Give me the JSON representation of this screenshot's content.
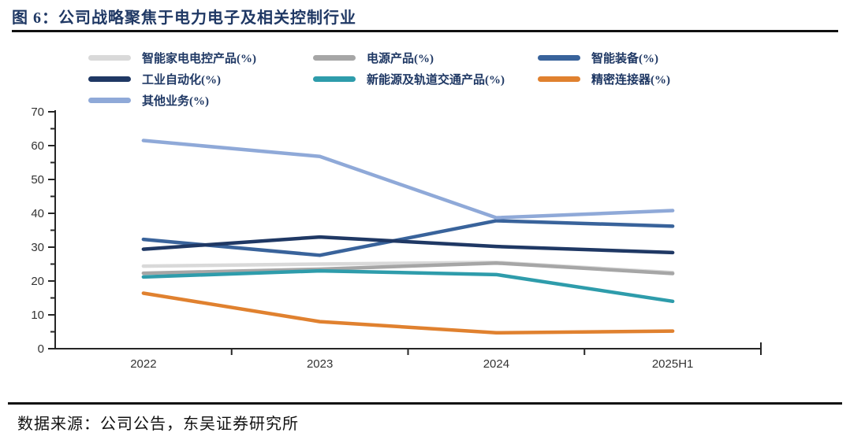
{
  "header": {
    "title": "图 6：公司战略聚焦于电力电子及相关控制行业"
  },
  "footer": {
    "source": "数据来源：公司公告，东吴证券研究所"
  },
  "chart_data": {
    "type": "line",
    "categories": [
      "2022",
      "2023",
      "2024",
      "2025H1"
    ],
    "series": [
      {
        "name": "智能家电电控产品(%)",
        "color": "#d9d9d9",
        "values": [
          24.4,
          25.0,
          25.5,
          22.5
        ]
      },
      {
        "name": "电源产品(%)",
        "color": "#a6a6a6",
        "values": [
          22.3,
          23.5,
          25.3,
          22.2
        ]
      },
      {
        "name": "智能装备(%)",
        "color": "#39639b",
        "values": [
          32.3,
          27.6,
          37.8,
          36.2
        ]
      },
      {
        "name": "工业自动化(%)",
        "color": "#1f3864",
        "values": [
          29.4,
          33.0,
          30.2,
          28.4
        ]
      },
      {
        "name": "新能源及轨道交通产品(%)",
        "color": "#2e9cab",
        "values": [
          21.2,
          23.0,
          21.9,
          14.0
        ]
      },
      {
        "name": "精密连接器(%)",
        "color": "#e0812f",
        "values": [
          16.4,
          8.0,
          4.7,
          5.2
        ]
      },
      {
        "name": "其他业务(%)",
        "color": "#8fa9d8",
        "values": [
          61.5,
          56.8,
          38.7,
          40.8
        ]
      }
    ],
    "title": "",
    "xlabel": "",
    "ylabel": "",
    "ylim": [
      0,
      70
    ],
    "ytick_step": 10,
    "yminor_step": 5,
    "grid": false,
    "legend_position": "top",
    "axis_color": "#262626",
    "tick_label_color": "#333333",
    "line_width": 4.5
  }
}
